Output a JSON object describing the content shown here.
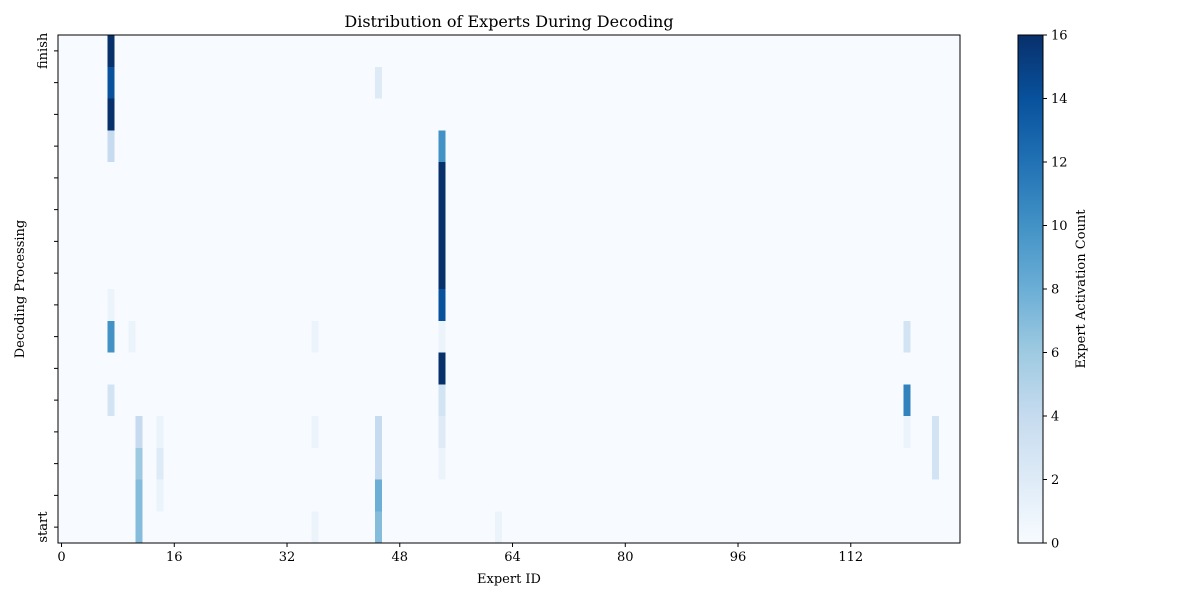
{
  "chart_data": {
    "type": "heatmap",
    "title": "Distribution of Experts During Decoding",
    "xlabel": "Expert ID",
    "ylabel": "Decoding Processing",
    "colorbar_label": "Expert Activation Count",
    "colormap": "Blues",
    "colormap_stops": [
      "#f7fbff",
      "#deebf7",
      "#c6dbef",
      "#9ecae1",
      "#6baed6",
      "#4292c6",
      "#2171b5",
      "#08519c",
      "#08306b"
    ],
    "xlim": [
      -0.5,
      127.5
    ],
    "x_ticks": [
      0,
      16,
      32,
      48,
      64,
      80,
      96,
      112
    ],
    "y_rows": 16,
    "y_tick_labels": [
      "start",
      "finish"
    ],
    "vlim": [
      0,
      16
    ],
    "colorbar_ticks": [
      0,
      2,
      4,
      6,
      8,
      10,
      12,
      14,
      16
    ],
    "cells": [
      {
        "expert": 11,
        "step": 0,
        "count": 7
      },
      {
        "expert": 36,
        "step": 0,
        "count": 1
      },
      {
        "expert": 45,
        "step": 0,
        "count": 7
      },
      {
        "expert": 62,
        "step": 0,
        "count": 1
      },
      {
        "expert": 11,
        "step": 1,
        "count": 7
      },
      {
        "expert": 14,
        "step": 1,
        "count": 1
      },
      {
        "expert": 45,
        "step": 1,
        "count": 8
      },
      {
        "expert": 11,
        "step": 2,
        "count": 6
      },
      {
        "expert": 14,
        "step": 2,
        "count": 2
      },
      {
        "expert": 45,
        "step": 2,
        "count": 4
      },
      {
        "expert": 54,
        "step": 2,
        "count": 1
      },
      {
        "expert": 124,
        "step": 2,
        "count": 3
      },
      {
        "expert": 11,
        "step": 3,
        "count": 4
      },
      {
        "expert": 14,
        "step": 3,
        "count": 1
      },
      {
        "expert": 36,
        "step": 3,
        "count": 1
      },
      {
        "expert": 45,
        "step": 3,
        "count": 4
      },
      {
        "expert": 54,
        "step": 3,
        "count": 2
      },
      {
        "expert": 120,
        "step": 3,
        "count": 1
      },
      {
        "expert": 124,
        "step": 3,
        "count": 3
      },
      {
        "expert": 7,
        "step": 4,
        "count": 3
      },
      {
        "expert": 54,
        "step": 4,
        "count": 3
      },
      {
        "expert": 120,
        "step": 4,
        "count": 11
      },
      {
        "expert": 54,
        "step": 5,
        "count": 16
      },
      {
        "expert": 7,
        "step": 6,
        "count": 10
      },
      {
        "expert": 10,
        "step": 6,
        "count": 1
      },
      {
        "expert": 36,
        "step": 6,
        "count": 1
      },
      {
        "expert": 54,
        "step": 6,
        "count": 1
      },
      {
        "expert": 120,
        "step": 6,
        "count": 3
      },
      {
        "expert": 7,
        "step": 7,
        "count": 1
      },
      {
        "expert": 54,
        "step": 7,
        "count": 14
      },
      {
        "expert": 54,
        "step": 8,
        "count": 16
      },
      {
        "expert": 54,
        "step": 9,
        "count": 16
      },
      {
        "expert": 54,
        "step": 10,
        "count": 16
      },
      {
        "expert": 54,
        "step": 11,
        "count": 16
      },
      {
        "expert": 7,
        "step": 12,
        "count": 4
      },
      {
        "expert": 54,
        "step": 12,
        "count": 10
      },
      {
        "expert": 7,
        "step": 13,
        "count": 16
      },
      {
        "expert": 7,
        "step": 14,
        "count": 14
      },
      {
        "expert": 45,
        "step": 14,
        "count": 2
      },
      {
        "expert": 7,
        "step": 15,
        "count": 16
      }
    ]
  }
}
